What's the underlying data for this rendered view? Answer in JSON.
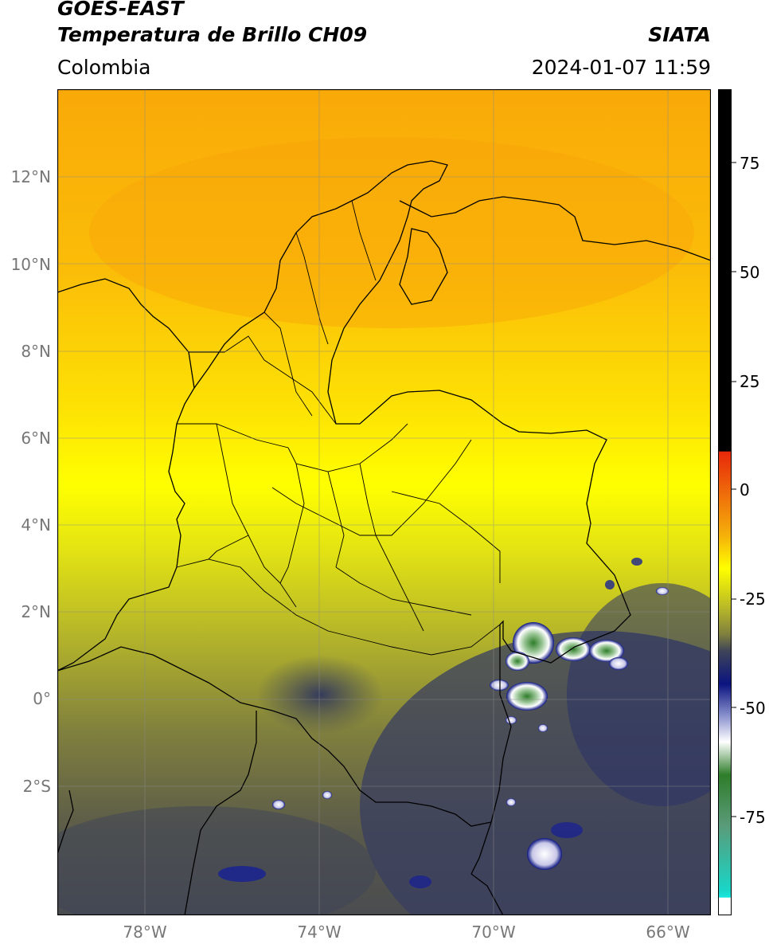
{
  "header": {
    "satellite": "GOES-EAST",
    "product": "Temperatura de Brillo CH09",
    "region": "Colombia",
    "agency": "SIATA",
    "timestamp": "2024-01-07 11:59"
  },
  "map": {
    "lat_ticks": [
      "12°N",
      "10°N",
      "8°N",
      "6°N",
      "4°N",
      "2°N",
      "0°",
      "2°S"
    ],
    "lon_ticks": [
      "78°W",
      "74°W",
      "70°W",
      "66°W"
    ],
    "extent": {
      "lon_min": -80,
      "lon_max": -65,
      "lat_min": -5.2,
      "lat_max": 14
    }
  },
  "colorbar": {
    "ticks": [
      "75",
      "50",
      "25",
      "0",
      "-25",
      "-50",
      "-75"
    ],
    "range": [
      -95,
      90
    ],
    "colors": {
      "black": "#000000",
      "red": "#e8280a",
      "orange": "#f5a20a",
      "yellow": "#ffff00",
      "olive": "#9a9a30",
      "slate": "#3e4458",
      "navy": "#0b1480",
      "white": "#ffffff",
      "green": "#2e7d2a",
      "cyan": "#19d6c8"
    }
  }
}
